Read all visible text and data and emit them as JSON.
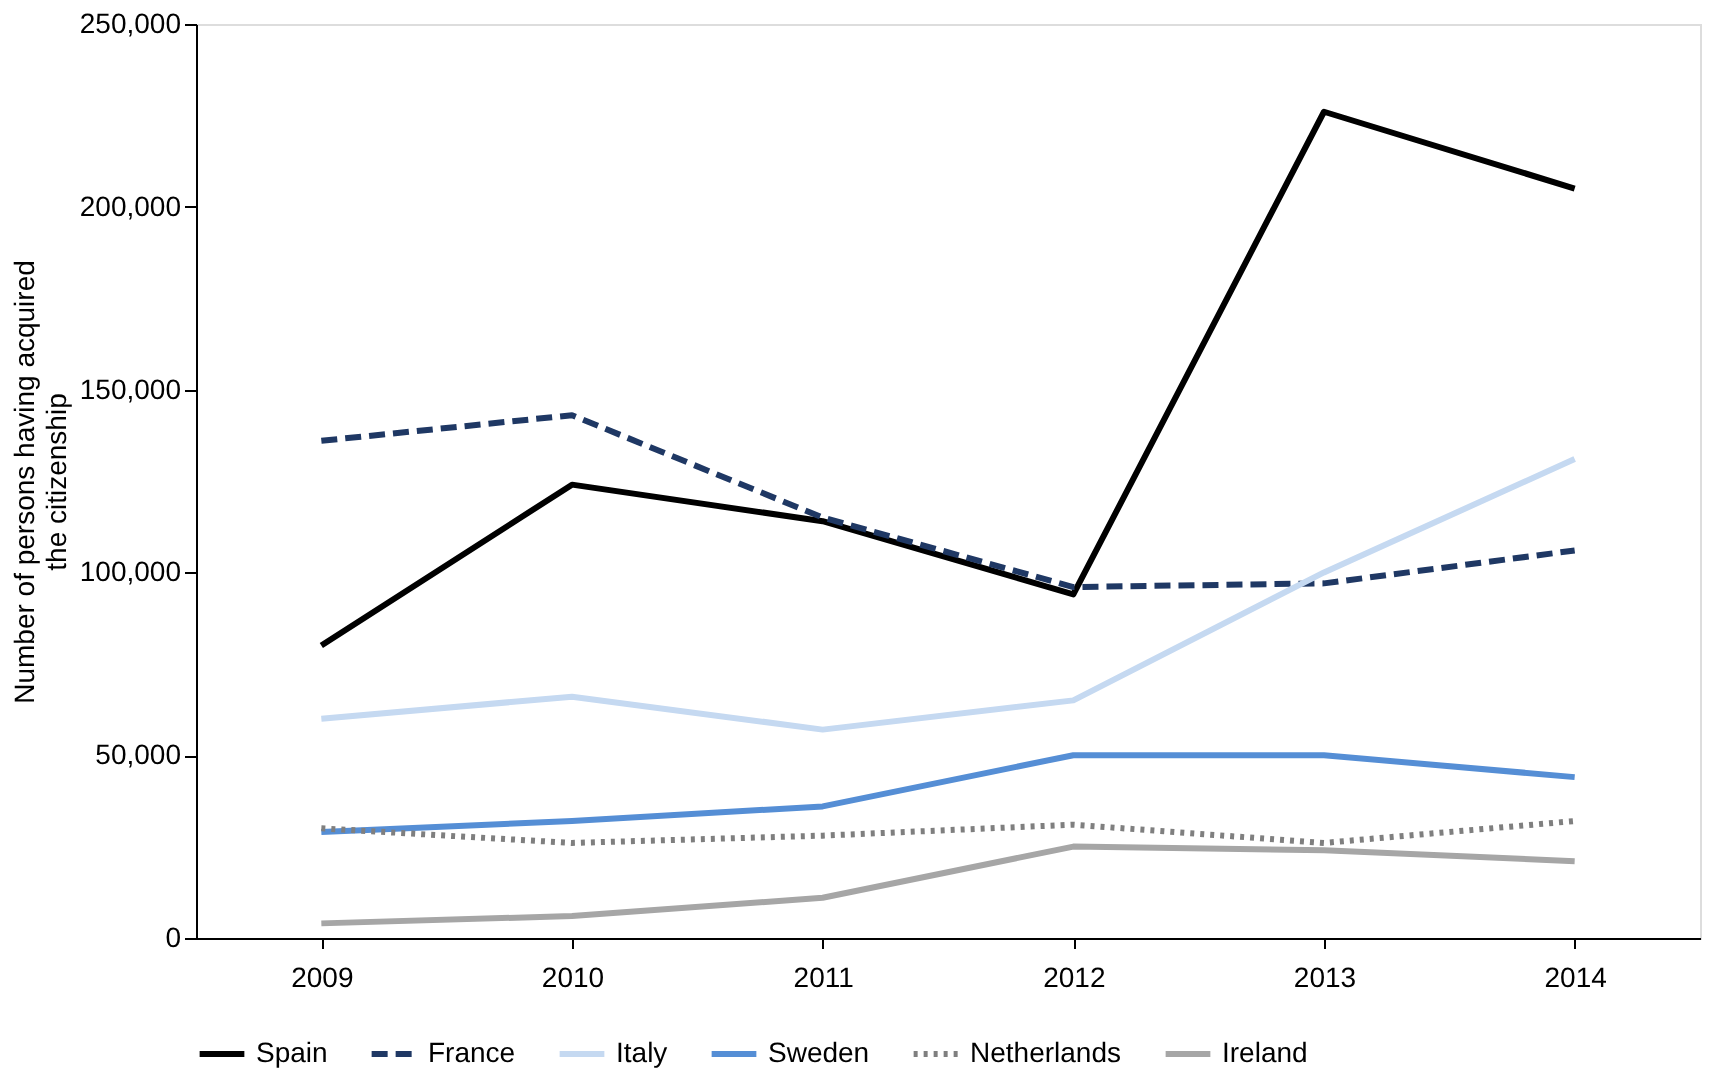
{
  "chart_data": {
    "type": "line",
    "ylabel": "Number of persons having acquired the citizenship",
    "categories": [
      "2009",
      "2010",
      "2011",
      "2012",
      "2013",
      "2014"
    ],
    "ylim": [
      0,
      250000
    ],
    "yticks": [
      0,
      {
        "value": 50000,
        "label": "50,000"
      },
      {
        "value": 100000,
        "label": "100,000"
      },
      {
        "value": 150000,
        "label": "150,000"
      },
      {
        "value": 200000,
        "label": "200,000"
      },
      {
        "value": 250000,
        "label": "250,000"
      }
    ],
    "grid": false,
    "legend": "bottom",
    "marker": "none",
    "series": [
      {
        "name": "Spain",
        "color": "#000000",
        "line_style": "solid",
        "values": [
          80000,
          124000,
          114000,
          94000,
          226000,
          205000
        ]
      },
      {
        "name": "France",
        "color": "#1f3864",
        "line_style": "dashed",
        "values": [
          136000,
          143000,
          115000,
          96000,
          97000,
          106000
        ]
      },
      {
        "name": "Italy",
        "color": "#c5d9f1",
        "line_style": "solid",
        "values": [
          60000,
          66000,
          57000,
          65000,
          100000,
          131000
        ]
      },
      {
        "name": "Sweden",
        "color": "#558ed5",
        "line_style": "solid",
        "values": [
          29000,
          32000,
          36000,
          50000,
          50000,
          44000
        ]
      },
      {
        "name": "Netherlands",
        "color": "#7f7f7f",
        "line_style": "dotted",
        "values": [
          30000,
          26000,
          28000,
          31000,
          26000,
          32000
        ]
      },
      {
        "name": "Ireland",
        "color": "#a6a6a6",
        "line_style": "solid",
        "values": [
          4000,
          6000,
          11000,
          25000,
          24000,
          21000
        ]
      }
    ]
  }
}
